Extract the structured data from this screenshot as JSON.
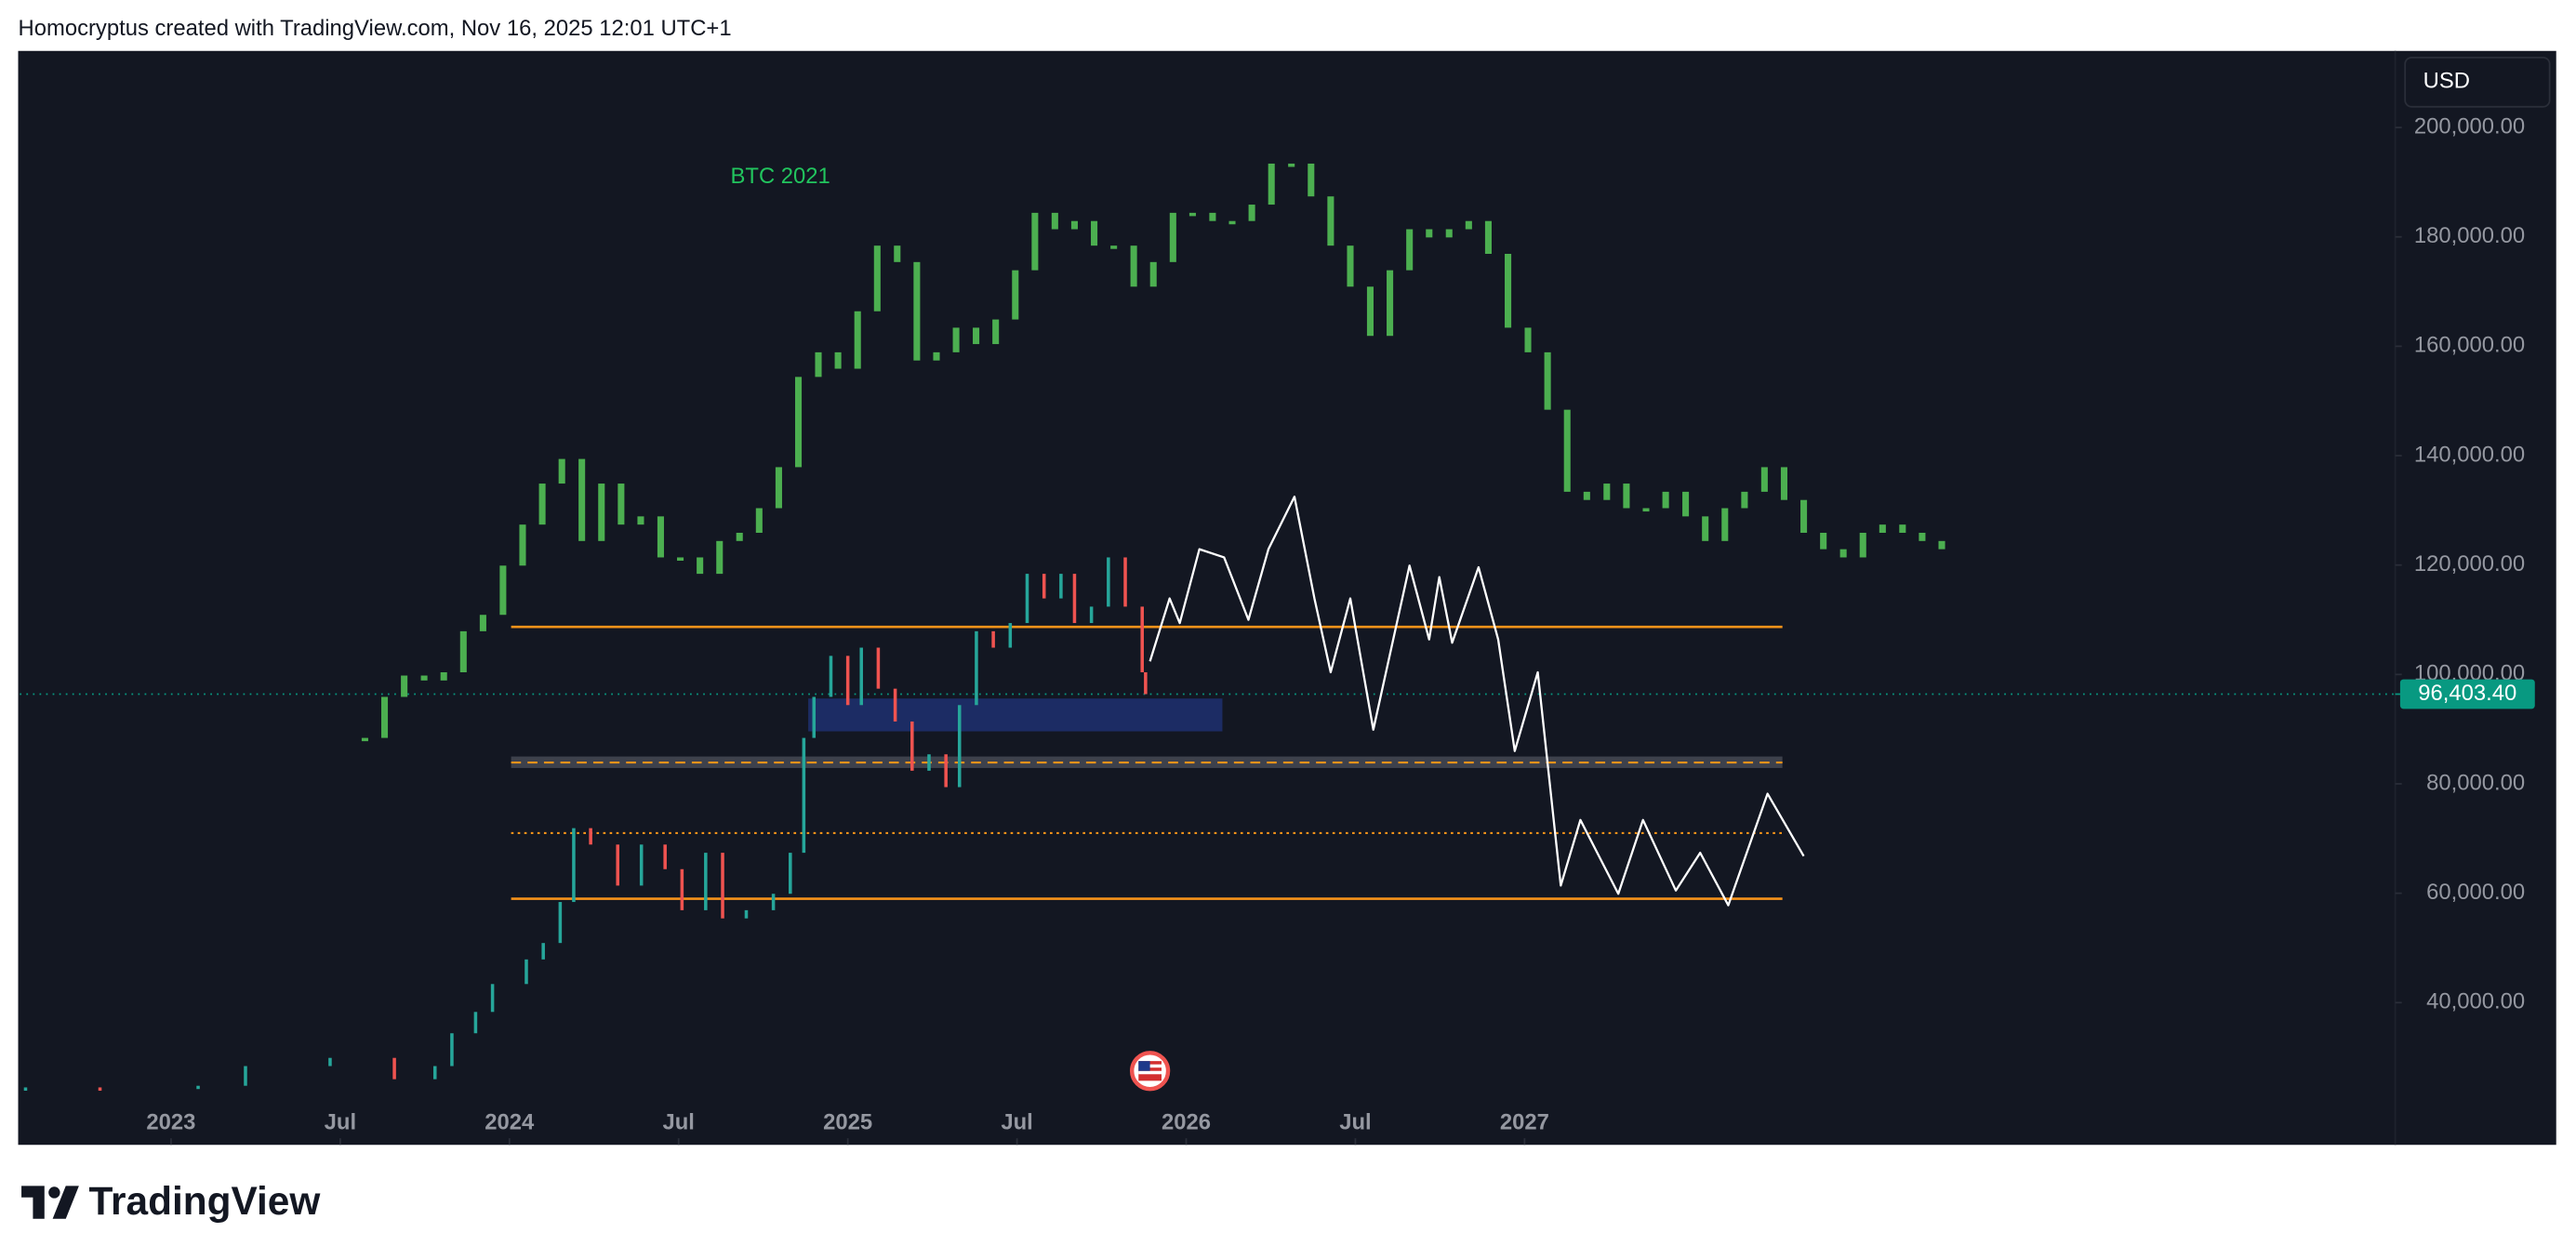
{
  "header": {
    "text": "Homocryptus created with TradingView.com, Nov 16, 2025 12:01 UTC+1"
  },
  "currency": "USD",
  "footer": {
    "logo": "TradingView"
  },
  "chart_data": {
    "type": "bar",
    "xlim": [
      2022.553,
      2029.573
    ],
    "ylim": [
      14000,
      214000
    ],
    "xticks": [
      {
        "value": 2023,
        "label": "2023"
      },
      {
        "value": 2023.5,
        "label": "Jul"
      },
      {
        "value": 2024,
        "label": "2024"
      },
      {
        "value": 2024.5,
        "label": "Jul"
      },
      {
        "value": 2025,
        "label": "2025"
      },
      {
        "value": 2025.5,
        "label": "Jul"
      },
      {
        "value": 2026,
        "label": "2026"
      },
      {
        "value": 2026.5,
        "label": "Jul"
      },
      {
        "value": 2027,
        "label": "2027"
      }
    ],
    "yticks": [
      {
        "value": 40000,
        "label": "40,000.00"
      },
      {
        "value": 60000,
        "label": "60,000.00"
      },
      {
        "value": 80000,
        "label": "80,000.00"
      },
      {
        "value": 100000,
        "label": "100,000.00"
      },
      {
        "value": 120000,
        "label": "120,000.00"
      },
      {
        "value": 140000,
        "label": "140,000.00"
      },
      {
        "value": 160000,
        "label": "160,000.00"
      },
      {
        "value": 180000,
        "label": "180,000.00"
      },
      {
        "value": 200000,
        "label": "200,000.00"
      }
    ],
    "series": [
      {
        "color_up": "#26a69a",
        "color_down": "#ef5350",
        "x": [
          2022.57,
          2022.79,
          2023.08,
          2023.22,
          2023.47,
          2023.66,
          2023.78,
          2023.83,
          2023.9,
          2023.95,
          2024.05,
          2024.1,
          2024.15,
          2024.19,
          2024.24,
          2024.32,
          2024.39,
          2024.46,
          2024.51,
          2024.58,
          2024.63,
          2024.7,
          2024.78,
          2024.83,
          2024.87,
          2024.9,
          2024.95,
          2025.0,
          2025.04,
          2025.09,
          2025.14,
          2025.19,
          2025.24,
          2025.29,
          2025.33,
          2025.38,
          2025.43,
          2025.48,
          2025.53,
          2025.58,
          2025.63,
          2025.67,
          2025.72,
          2025.77,
          2025.82,
          2025.87,
          2025.88
        ],
        "values": [
          24500,
          24200,
          24800,
          28400,
          29900,
          26000,
          28400,
          34400,
          38300,
          43400,
          47900,
          50900,
          58400,
          71900,
          68900,
          61400,
          68900,
          64400,
          56900,
          67400,
          55400,
          56900,
          59900,
          67400,
          88400,
          95900,
          103400,
          94400,
          104900,
          97400,
          91400,
          82400,
          85400,
          79400,
          94400,
          107900,
          104900,
          109400,
          118400,
          113900,
          118400,
          109400,
          112400,
          121400,
          112400,
          100400,
          96403.4
        ]
      },
      {
        "name": "BTC 2021",
        "color": "#4caf50",
        "x": [
          2023.573,
          2023.631,
          2023.689,
          2023.748,
          2023.806,
          2023.864,
          2023.922,
          2023.981,
          2024.039,
          2024.097,
          2024.155,
          2024.214,
          2024.272,
          2024.33,
          2024.388,
          2024.447,
          2024.505,
          2024.563,
          2024.621,
          2024.68,
          2024.738,
          2024.796,
          2024.854,
          2024.913,
          2024.971,
          2025.029,
          2025.087,
          2025.146,
          2025.204,
          2025.262,
          2025.32,
          2025.379,
          2025.437,
          2025.495,
          2025.553,
          2025.612,
          2025.67,
          2025.728,
          2025.786,
          2025.845,
          2025.903,
          2025.961,
          2026.019,
          2026.078,
          2026.136,
          2026.194,
          2026.252,
          2026.311,
          2026.369,
          2026.427,
          2026.485,
          2026.544,
          2026.602,
          2026.66,
          2026.718,
          2026.777,
          2026.835,
          2026.893,
          2026.951,
          2027.01,
          2027.068,
          2027.126,
          2027.184,
          2027.243,
          2027.301,
          2027.359,
          2027.417,
          2027.476,
          2027.534,
          2027.592,
          2027.65,
          2027.709,
          2027.767,
          2027.825,
          2027.883,
          2027.942,
          2028.0,
          2028.058,
          2028.117,
          2028.175,
          2028.233
        ],
        "values": [
          88400,
          95900,
          99800,
          98900,
          100400,
          107900,
          110900,
          119900,
          127400,
          134900,
          139400,
          124400,
          134900,
          127400,
          128900,
          121400,
          121400,
          118400,
          124400,
          125900,
          130400,
          137900,
          154400,
          158900,
          155900,
          166400,
          178400,
          175400,
          157400,
          158900,
          163400,
          160400,
          164900,
          173900,
          184400,
          181400,
          182900,
          178400,
          178400,
          170900,
          175400,
          184400,
          184400,
          182900,
          182900,
          185900,
          193400,
          193400,
          187400,
          178400,
          170900,
          161900,
          173900,
          181400,
          179900,
          181400,
          182900,
          176900,
          163400,
          158900,
          148400,
          133400,
          131900,
          134900,
          130400,
          130400,
          133400,
          128900,
          124400,
          130400,
          133400,
          137900,
          131900,
          125900,
          122900,
          121400,
          125900,
          127400,
          125900,
          124400,
          122900
        ]
      },
      {
        "type": "line",
        "color": "#ffffff",
        "x": [
          2025.893,
          2025.951,
          2025.981,
          2026.039,
          2026.112,
          2026.184,
          2026.243,
          2026.32,
          2026.379,
          2026.427,
          2026.485,
          2026.553,
          2026.66,
          2026.718,
          2026.748,
          2026.786,
          2026.864,
          2026.922,
          2026.971,
          2027.039,
          2027.107,
          2027.165,
          2027.277,
          2027.35,
          2027.447,
          2027.519,
          2027.602,
          2027.718,
          2027.825
        ],
        "values": [
          102400,
          113900,
          109400,
          122900,
          121400,
          110000,
          122900,
          132500,
          113900,
          100400,
          113900,
          89900,
          119900,
          106400,
          117800,
          105800,
          119600,
          106400,
          86000,
          100400,
          61400,
          73400,
          59900,
          73400,
          60500,
          67400,
          57800,
          78200,
          66800
        ]
      }
    ],
    "zones": [
      {
        "y": [
          89600,
          95600
        ],
        "x": [
          2024.883,
          2026.107
        ],
        "color": "#1e2f6b"
      },
      {
        "y": [
          82900,
          85000
        ],
        "x": [
          2024.005,
          2027.762
        ],
        "color": "#434651"
      }
    ],
    "levels": [
      {
        "value": 108700,
        "x": [
          2024.005,
          2027.762
        ],
        "color": "#f7931a",
        "style": "solid"
      },
      {
        "value": 83900,
        "x": [
          2024.005,
          2027.762
        ],
        "color": "#f7931a",
        "style": "dashed"
      },
      {
        "value": 71000,
        "x": [
          2024.005,
          2027.762
        ],
        "color": "#f7931a",
        "style": "dotted"
      },
      {
        "value": 59000,
        "x": [
          2024.005,
          2027.762
        ],
        "color": "#f7931a",
        "style": "solid"
      }
    ],
    "last_price": {
      "value": 96403.4,
      "label": "96,403.40",
      "color": "#089981"
    }
  }
}
